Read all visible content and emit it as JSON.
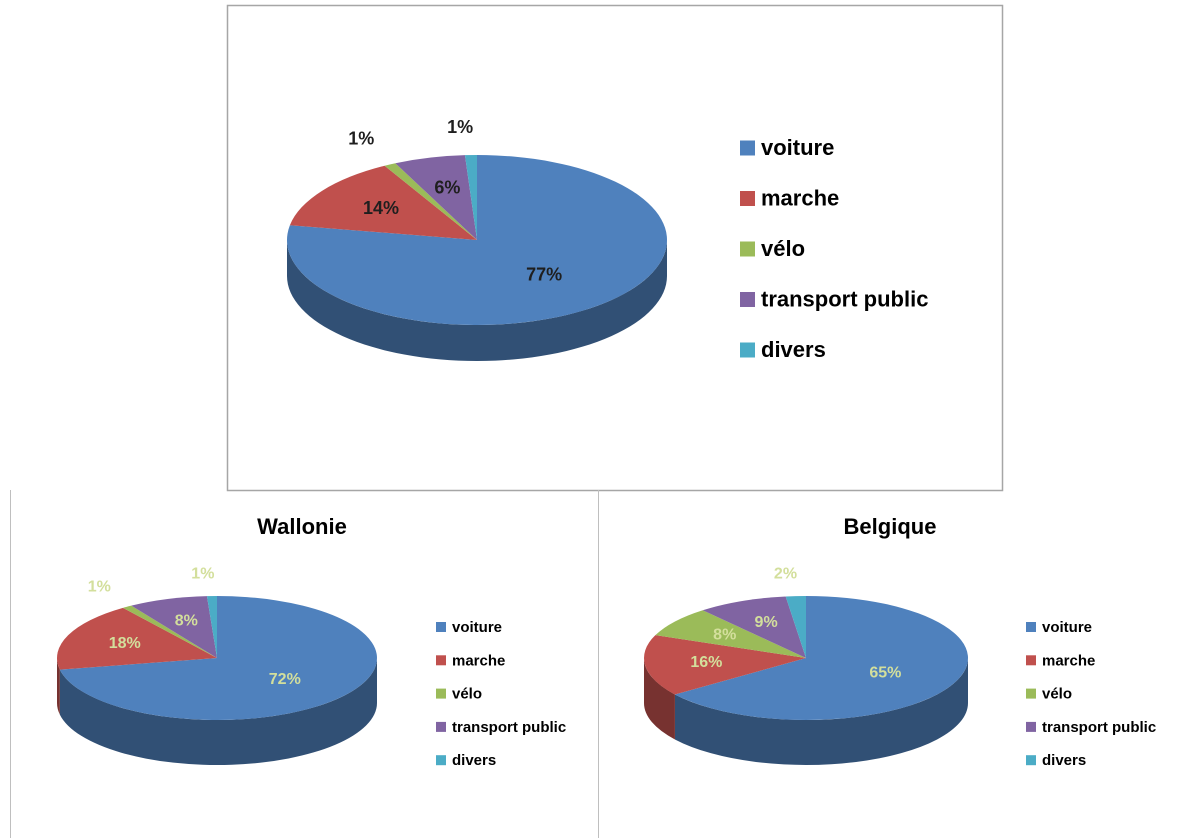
{
  "chart_data": [
    {
      "type": "pie",
      "categories": [
        "voiture",
        "marche",
        "vélo",
        "transport public",
        "divers"
      ],
      "values": [
        77,
        14,
        1,
        6,
        1
      ],
      "value_labels": [
        "77%",
        "14%",
        "1%",
        "6%",
        "1%"
      ],
      "colors": [
        "#4f81bd",
        "#c0504d",
        "#9bbb59",
        "#8064a2",
        "#4bacc6"
      ],
      "label_color": "#1f1f1f",
      "legend": "right"
    },
    {
      "type": "pie",
      "title": "Wallonie",
      "categories": [
        "voiture",
        "marche",
        "vélo",
        "transport public",
        "divers"
      ],
      "values": [
        72,
        18,
        1,
        8,
        1
      ],
      "value_labels": [
        "72%",
        "18%",
        "1%",
        "8%",
        "1%"
      ],
      "colors": [
        "#4f81bd",
        "#c0504d",
        "#9bbb59",
        "#8064a2",
        "#4bacc6"
      ],
      "label_color": "#d3df9c",
      "legend": "right"
    },
    {
      "type": "pie",
      "title": "Belgique",
      "categories": [
        "voiture",
        "marche",
        "vélo",
        "transport public",
        "divers"
      ],
      "values": [
        65,
        16,
        8,
        9,
        2
      ],
      "value_labels": [
        "65%",
        "16%",
        "8%",
        "9%",
        "2%"
      ],
      "colors": [
        "#4f81bd",
        "#c0504d",
        "#9bbb59",
        "#8064a2",
        "#4bacc6"
      ],
      "label_color": "#d3df9c",
      "legend": "right"
    }
  ]
}
